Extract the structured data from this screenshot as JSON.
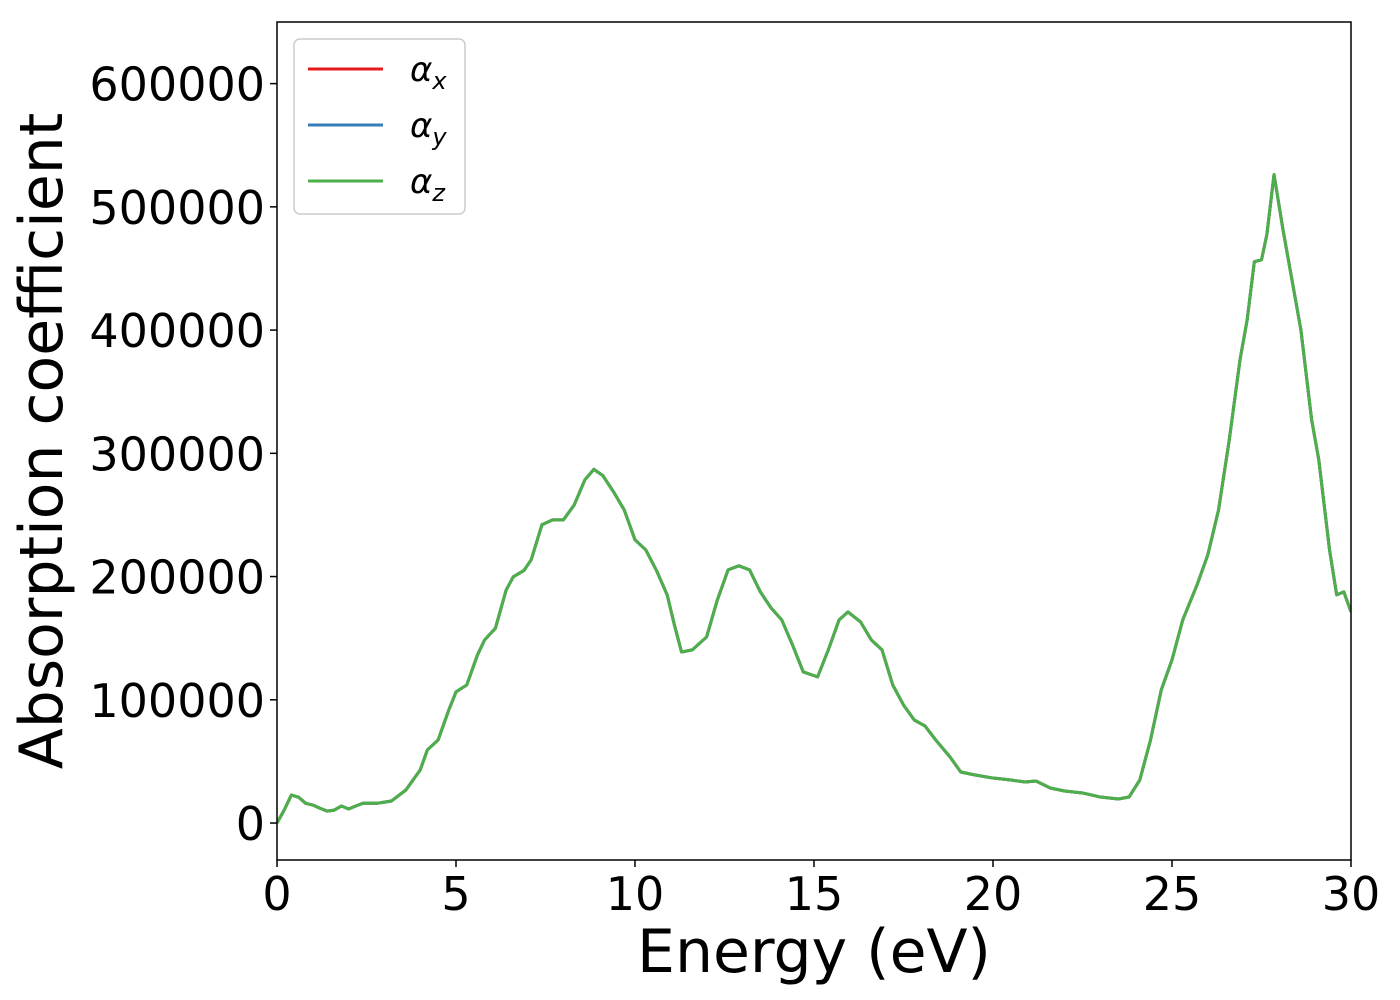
{
  "chart_data": {
    "type": "line",
    "xlabel": "Energy (eV)",
    "ylabel": "Absorption coefficient",
    "xlim": [
      0,
      30
    ],
    "ylim": [
      -30000,
      650000
    ],
    "xticks": [
      0,
      5,
      10,
      15,
      20,
      25,
      30
    ],
    "yticks": [
      0,
      100000,
      200000,
      300000,
      400000,
      500000,
      600000
    ],
    "legend": "upper left",
    "x": [
      0,
      0.2,
      0.4,
      0.6,
      0.8,
      1.0,
      1.2,
      1.4,
      1.6,
      1.8,
      2.0,
      2.2,
      2.4,
      2.8,
      3.2,
      3.6,
      4.0,
      4.2,
      4.5,
      4.8,
      5.0,
      5.3,
      5.6,
      5.8,
      6.1,
      6.4,
      6.6,
      6.9,
      7.1,
      7.4,
      7.7,
      8.0,
      8.3,
      8.6,
      8.85,
      9.1,
      9.4,
      9.7,
      10.0,
      10.3,
      10.6,
      10.9,
      11.1,
      11.3,
      11.6,
      12.0,
      12.3,
      12.6,
      12.9,
      13.2,
      13.5,
      13.8,
      14.1,
      14.4,
      14.7,
      15.1,
      15.4,
      15.7,
      15.95,
      16.3,
      16.6,
      16.9,
      17.2,
      17.5,
      17.8,
      18.1,
      18.4,
      18.8,
      19.1,
      19.5,
      20.0,
      20.5,
      20.9,
      21.2,
      21.6,
      22.0,
      22.5,
      23.0,
      23.5,
      23.8,
      24.1,
      24.4,
      24.7,
      25.0,
      25.3,
      25.7,
      26.0,
      26.3,
      26.6,
      26.9,
      27.1,
      27.3,
      27.5,
      27.65,
      27.85,
      28.1,
      28.3,
      28.6,
      28.9,
      29.1,
      29.4,
      29.6,
      29.8,
      30.0
    ],
    "series": [
      {
        "name": "αx",
        "color": "#e41a1c",
        "values": [
          0,
          10500,
          22700,
          21000,
          16000,
          14600,
          12000,
          9700,
          10500,
          13800,
          11400,
          13800,
          16000,
          16000,
          17900,
          26800,
          43000,
          59300,
          67400,
          91800,
          106400,
          112000,
          136400,
          148600,
          158000,
          189000,
          199800,
          205000,
          213600,
          242000,
          246000,
          246000,
          258000,
          278500,
          287000,
          282000,
          268800,
          254000,
          229800,
          221700,
          205000,
          185000,
          160800,
          138800,
          140500,
          151000,
          181000,
          205400,
          208700,
          205400,
          187600,
          174600,
          164800,
          144500,
          122600,
          118600,
          140500,
          164800,
          171300,
          163200,
          148600,
          140500,
          112000,
          95800,
          83600,
          78800,
          67400,
          53600,
          41400,
          39000,
          36500,
          34900,
          33300,
          34100,
          28400,
          26000,
          24400,
          21100,
          19500,
          21100,
          34900,
          67400,
          108000,
          132400,
          164800,
          193300,
          217600,
          254000,
          311000,
          376000,
          408400,
          455500,
          457000,
          477500,
          526200,
          481500,
          449000,
          400300,
          327300,
          294800,
          221700,
          185100,
          187600,
          171300
        ]
      },
      {
        "name": "αy",
        "color": "#377eb8",
        "values": [
          0,
          10500,
          22700,
          21000,
          16000,
          14600,
          12000,
          9700,
          10500,
          13800,
          11400,
          13800,
          16000,
          16000,
          17900,
          26800,
          43000,
          59300,
          67400,
          91800,
          106400,
          112000,
          136400,
          148600,
          158000,
          189000,
          199800,
          205000,
          213600,
          242000,
          246000,
          246000,
          258000,
          278500,
          287000,
          282000,
          268800,
          254000,
          229800,
          221700,
          205000,
          185000,
          160800,
          138800,
          140500,
          151000,
          181000,
          205400,
          208700,
          205400,
          187600,
          174600,
          164800,
          144500,
          122600,
          118600,
          140500,
          164800,
          171300,
          163200,
          148600,
          140500,
          112000,
          95800,
          83600,
          78800,
          67400,
          53600,
          41400,
          39000,
          36500,
          34900,
          33300,
          34100,
          28400,
          26000,
          24400,
          21100,
          19500,
          21100,
          34900,
          67400,
          108000,
          132400,
          164800,
          193300,
          217600,
          254000,
          311000,
          376000,
          408400,
          455500,
          457000,
          477500,
          526200,
          481500,
          449000,
          400300,
          327300,
          294800,
          221700,
          185100,
          187600,
          171300
        ]
      },
      {
        "name": "αz",
        "color": "#4daf4a",
        "values": [
          0,
          10500,
          22700,
          21000,
          16000,
          14600,
          12000,
          9700,
          10500,
          13800,
          11400,
          13800,
          16000,
          16000,
          17900,
          26800,
          43000,
          59300,
          67400,
          91800,
          106400,
          112000,
          136400,
          148600,
          158000,
          189000,
          199800,
          205000,
          213600,
          242000,
          246000,
          246000,
          258000,
          278500,
          287000,
          282000,
          268800,
          254000,
          229800,
          221700,
          205000,
          185000,
          160800,
          138800,
          140500,
          151000,
          181000,
          205400,
          208700,
          205400,
          187600,
          174600,
          164800,
          144500,
          122600,
          118600,
          140500,
          164800,
          171300,
          163200,
          148600,
          140500,
          112000,
          95800,
          83600,
          78800,
          67400,
          53600,
          41400,
          39000,
          36500,
          34900,
          33300,
          34100,
          28400,
          26000,
          24400,
          21100,
          19500,
          21100,
          34900,
          67400,
          108000,
          132400,
          164800,
          193300,
          217600,
          254000,
          311000,
          376000,
          408400,
          455500,
          457000,
          477500,
          526200,
          481500,
          449000,
          400300,
          327300,
          294800,
          221700,
          185100,
          187600,
          171300
        ]
      }
    ]
  }
}
